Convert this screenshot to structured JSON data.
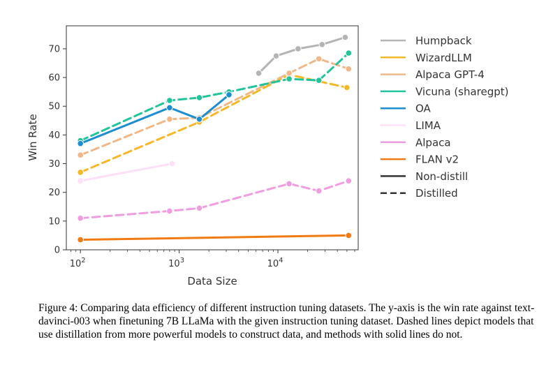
{
  "chart_data": {
    "type": "line",
    "xscale": "log",
    "xlabel": "Data Size",
    "ylabel": "Win Rate",
    "xlim": [
      72,
      65000
    ],
    "ylim": [
      0,
      78
    ],
    "xticks": [
      {
        "value": 100,
        "base": "10",
        "exp": "2"
      },
      {
        "value": 1000,
        "base": "10",
        "exp": "3"
      },
      {
        "value": 10000,
        "base": "10",
        "exp": "4"
      }
    ],
    "yticks": [
      0,
      10,
      20,
      30,
      40,
      50,
      60,
      70
    ],
    "grid": false,
    "legend_position": "right",
    "series": [
      {
        "name": "Humpback",
        "color": "#b4b4b4",
        "style": "solid",
        "x": [
          6400,
          9600,
          16000,
          28000,
          48000
        ],
        "y": [
          61.5,
          67.5,
          70,
          71.5,
          74
        ]
      },
      {
        "name": "WizardLLM",
        "color": "#f5b82a",
        "style": "dashed",
        "x": [
          100,
          1600,
          13000,
          50000
        ],
        "y": [
          27,
          44.5,
          61,
          56.5
        ]
      },
      {
        "name": "Alpaca GPT-4",
        "color": "#f0b888",
        "style": "dashed",
        "x": [
          100,
          800,
          1600,
          13000,
          26000,
          52000
        ],
        "y": [
          33,
          45.5,
          46,
          61.5,
          66.5,
          63
        ]
      },
      {
        "name": "Vicuna (sharegpt)",
        "color": "#22c49a",
        "style": "dashed",
        "x": [
          100,
          800,
          1600,
          3200,
          13000,
          26000,
          52000
        ],
        "y": [
          38,
          52,
          53,
          55,
          59.5,
          59,
          68.5
        ]
      },
      {
        "name": "OA",
        "color": "#1f8ed0",
        "style": "solid",
        "x": [
          100,
          800,
          1600,
          3200
        ],
        "y": [
          37,
          49.5,
          45.5,
          54
        ]
      },
      {
        "name": "LIMA",
        "color": "#fde0f8",
        "style": "solid",
        "x": [
          100,
          850
        ],
        "y": [
          24,
          30
        ]
      },
      {
        "name": "Alpaca",
        "color": "#ef9de0",
        "style": "dashed",
        "x": [
          100,
          800,
          1600,
          13000,
          26000,
          52000
        ],
        "y": [
          11,
          13.5,
          14.5,
          23,
          20.5,
          24
        ]
      },
      {
        "name": "FLAN v2",
        "color": "#f27a12",
        "style": "solid",
        "x": [
          100,
          52000
        ],
        "y": [
          3.5,
          5
        ]
      }
    ],
    "legend_extra": [
      {
        "name": "Non-distill",
        "color": "#333333",
        "style": "solid"
      },
      {
        "name": "Distilled",
        "color": "#333333",
        "style": "dashed"
      }
    ]
  },
  "caption": "Figure 4: Comparing data efficiency of different instruction tuning datasets. The y-axis is the win rate against text-davinci-003 when finetuning 7B LLaMa with the given instruction tuning dataset. Dashed lines depict models that use distillation from more powerful models to construct data, and methods with solid lines do not."
}
